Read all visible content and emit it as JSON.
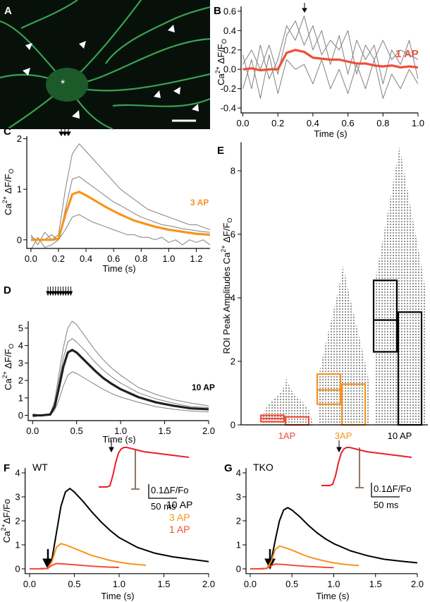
{
  "image_panel": {
    "label": "A",
    "marker": "*"
  },
  "chart_data": [
    {
      "type": "line",
      "panel_label": "B",
      "annotation": "1 AP",
      "annotation_color": "#f04e37",
      "x_label": "Time (s)",
      "y_label_parts": [
        "Ca",
        "2+",
        " ΔF/F",
        "O"
      ],
      "xlim": [
        -0.01,
        1.0
      ],
      "ylim": [
        -0.45,
        0.65
      ],
      "xticks": [
        {
          "value": 0,
          "label": "0.0"
        },
        0.2,
        0.4,
        0.6,
        0.8,
        {
          "value": 1,
          "label": "1.0"
        }
      ],
      "yticks": [
        -0.4,
        -0.2,
        {
          "value": 0,
          "label": "0.0"
        },
        0.2,
        0.4,
        0.6
      ],
      "x": [
        0,
        0.05,
        0.1,
        0.15,
        0.2,
        0.25,
        0.3,
        0.35,
        0.4,
        0.45,
        0.5,
        0.55,
        0.6,
        0.65,
        0.7,
        0.75,
        0.8,
        0.85,
        0.9,
        0.95,
        1.0
      ],
      "series": [
        {
          "color": "#808080",
          "values": [
            0.15,
            -0.2,
            0.25,
            -0.1,
            0.1,
            0.45,
            0.3,
            0.55,
            0.2,
            0.4,
            0.05,
            0.35,
            -0.05,
            0.3,
            0.1,
            0.25,
            -0.15,
            0.2,
            0.05,
            0.3,
            -0.1
          ]
        },
        {
          "color": "#808080",
          "values": [
            -0.2,
            0.1,
            -0.3,
            0.15,
            -0.25,
            0.1,
            0.0,
            0.05,
            -0.15,
            0.1,
            -0.2,
            0.0,
            -0.25,
            0.05,
            -0.2,
            0.1,
            -0.3,
            -0.05,
            -0.2,
            0.0,
            -0.15
          ]
        },
        {
          "color": "#808080",
          "values": [
            0.05,
            0.2,
            0.0,
            0.25,
            -0.05,
            0.35,
            0.5,
            0.25,
            0.45,
            0.15,
            0.3,
            0.2,
            0.4,
            -0.05,
            0.25,
            0.1,
            0.3,
            0.1,
            0.2,
            0.15,
            0.1
          ]
        },
        {
          "color": "#f04e37",
          "values": [
            0,
            0.01,
            -0.01,
            0,
            0,
            0.17,
            0.2,
            0.18,
            0.12,
            0.11,
            0.1,
            0.1,
            0.08,
            0.06,
            0.06,
            0.04,
            0.03,
            0.04,
            0.02,
            0.03,
            0.02
          ]
        }
      ]
    },
    {
      "type": "line",
      "panel_label": "C",
      "annotation": "3 AP",
      "annotation_color": "#f7941d",
      "x_label": "Time (s)",
      "y_label_parts": [
        "Ca",
        "2+",
        " ΔF/F",
        "O"
      ],
      "xlim": [
        -0.03,
        1.3
      ],
      "ylim": [
        -0.17,
        2.05
      ],
      "xticks": [
        {
          "value": 0,
          "label": "0.0"
        },
        0.2,
        0.4,
        0.6,
        0.8,
        {
          "value": 1,
          "label": "1.0"
        },
        1.2
      ],
      "yticks": [
        0,
        1,
        2
      ],
      "x": [
        0,
        0.05,
        0.1,
        0.15,
        0.2,
        0.25,
        0.3,
        0.35,
        0.4,
        0.45,
        0.5,
        0.55,
        0.6,
        0.65,
        0.7,
        0.75,
        0.8,
        0.85,
        0.9,
        0.95,
        1.0,
        1.05,
        1.1,
        1.15,
        1.2,
        1.25,
        1.3
      ],
      "series": [
        {
          "color": "#808080",
          "values": [
            0.1,
            -0.1,
            0.15,
            0,
            0.1,
            1.0,
            1.7,
            1.9,
            1.75,
            1.6,
            1.45,
            1.3,
            1.15,
            1.0,
            0.9,
            0.8,
            0.7,
            0.6,
            0.55,
            0.5,
            0.45,
            0.4,
            0.35,
            0.3,
            0.3,
            0.25,
            0.2
          ]
        },
        {
          "color": "#808080",
          "values": [
            -0.2,
            0.05,
            -0.15,
            -0.1,
            0,
            0.2,
            0.45,
            0.5,
            0.42,
            0.35,
            0.3,
            0.25,
            0.2,
            0.15,
            0.1,
            0.1,
            0.05,
            0.05,
            0,
            0.05,
            -0.05,
            0,
            -0.1,
            0,
            -0.05,
            0,
            -0.1
          ]
        },
        {
          "color": "#808080",
          "values": [
            0.05,
            0,
            0,
            0.1,
            0,
            0.6,
            1.2,
            1.25,
            1.15,
            1.05,
            0.95,
            0.85,
            0.75,
            0.68,
            0.6,
            0.52,
            0.45,
            0.4,
            0.35,
            0.3,
            0.28,
            0.25,
            0.22,
            0.2,
            0.18,
            0.16,
            0.15
          ]
        },
        {
          "color": "#f7941d",
          "values": [
            0,
            0,
            0,
            0,
            0.02,
            0.5,
            0.9,
            0.95,
            0.88,
            0.8,
            0.72,
            0.64,
            0.57,
            0.5,
            0.44,
            0.38,
            0.34,
            0.3,
            0.26,
            0.23,
            0.2,
            0.18,
            0.16,
            0.14,
            0.12,
            0.11,
            0.1
          ]
        }
      ]
    },
    {
      "type": "line",
      "panel_label": "D",
      "annotation": "10 AP",
      "annotation_color": "#000000",
      "x_label": "Time (s)",
      "y_label_parts": [
        "Ca",
        "2+",
        " ΔF/F",
        "O"
      ],
      "xlim": [
        -0.05,
        2.0
      ],
      "ylim": [
        -0.3,
        5.4
      ],
      "xticks": [
        {
          "value": 0,
          "label": "0.0"
        },
        0.5,
        {
          "value": 1,
          "label": "1.0"
        },
        1.5,
        {
          "value": 2,
          "label": "2.0"
        }
      ],
      "yticks": [
        0,
        1,
        2,
        3,
        4,
        5
      ],
      "x": [
        0,
        0.1,
        0.2,
        0.25,
        0.3,
        0.35,
        0.4,
        0.45,
        0.5,
        0.6,
        0.7,
        0.8,
        0.9,
        1.0,
        1.2,
        1.4,
        1.6,
        1.8,
        2.0
      ],
      "series": [
        {
          "color": "#808080",
          "values": [
            0.1,
            0,
            0.1,
            0.8,
            2.4,
            3.9,
            5.0,
            5.4,
            5.2,
            4.5,
            3.8,
            3.2,
            2.7,
            2.3,
            1.6,
            1.2,
            0.9,
            0.7,
            0.55
          ]
        },
        {
          "color": "#808080",
          "values": [
            -0.1,
            0,
            0,
            0.3,
            0.9,
            1.7,
            2.3,
            2.5,
            2.4,
            2.1,
            1.8,
            1.5,
            1.25,
            1.05,
            0.75,
            0.5,
            0.35,
            0.25,
            0.2
          ]
        },
        {
          "color": "#808080",
          "values": [
            0,
            0.05,
            0.05,
            0.6,
            2.0,
            3.3,
            4.2,
            4.4,
            4.2,
            3.7,
            3.1,
            2.6,
            2.2,
            1.85,
            1.3,
            0.95,
            0.7,
            0.5,
            0.45
          ]
        },
        {
          "color": "#231f20",
          "values": [
            0,
            0,
            0.05,
            0.5,
            1.6,
            2.8,
            3.6,
            3.75,
            3.6,
            3.1,
            2.6,
            2.15,
            1.8,
            1.5,
            1.05,
            0.75,
            0.55,
            0.4,
            0.35
          ]
        }
      ]
    },
    {
      "type": "box",
      "panel_label": "E",
      "y_label_parts": [
        "ROI Peak Amplitudes Ca",
        "2+",
        " ΔF/F",
        "O"
      ],
      "ylim": [
        0,
        8.9
      ],
      "yticks": [
        0,
        2,
        4,
        6,
        8
      ],
      "categories": [
        "1AP",
        "3AP",
        "10 AP"
      ],
      "colors": [
        "#f04e37",
        "#f7941d",
        "#000000"
      ],
      "min": [
        0,
        0,
        0
      ],
      "max": [
        1.55,
        5.05,
        8.8
      ],
      "q1": [
        0.1,
        0.65,
        2.3
      ],
      "median": [
        0.2,
        1.1,
        3.3
      ],
      "q3": [
        0.3,
        1.6,
        4.55
      ],
      "bar_values": [
        0.25,
        1.28,
        3.55
      ]
    },
    {
      "type": "line",
      "panel_label": "F",
      "annotation": "WT",
      "annotation_color": "#000000",
      "x_label": "Time (s)",
      "y_label_parts": [
        "Ca",
        "2+",
        "ΔF/Fo"
      ],
      "xlim": [
        -0.05,
        2.0
      ],
      "ylim": [
        -0.2,
        4.2
      ],
      "xticks": [
        {
          "value": 0,
          "label": "0.0"
        },
        0.5,
        {
          "value": 1,
          "label": "1.0"
        },
        1.5,
        {
          "value": 2,
          "label": "2.0"
        }
      ],
      "yticks": [
        0,
        1,
        2,
        3,
        4
      ],
      "series": [
        {
          "name": "10 AP",
          "color": "#000000",
          "x": [
            0,
            0.1,
            0.2,
            0.25,
            0.3,
            0.35,
            0.4,
            0.45,
            0.5,
            0.6,
            0.7,
            0.8,
            0.9,
            1.0,
            1.2,
            1.4,
            1.6,
            1.8,
            2.0
          ],
          "values": [
            0,
            0,
            0.02,
            0.4,
            1.5,
            2.6,
            3.2,
            3.35,
            3.2,
            2.8,
            2.35,
            1.95,
            1.6,
            1.3,
            0.9,
            0.65,
            0.5,
            0.4,
            0.3
          ]
        },
        {
          "name": "3 AP",
          "color": "#f7941d",
          "x": [
            0,
            0.1,
            0.2,
            0.25,
            0.3,
            0.35,
            0.4,
            0.5,
            0.6,
            0.7,
            0.8,
            0.9,
            1.0,
            1.1,
            1.2,
            1.3
          ],
          "values": [
            0,
            0,
            0.02,
            0.3,
            0.9,
            1.05,
            1.0,
            0.85,
            0.7,
            0.55,
            0.45,
            0.35,
            0.28,
            0.22,
            0.18,
            0.15
          ]
        },
        {
          "name": "1 AP",
          "color": "#f04e37",
          "x": [
            0,
            0.1,
            0.2,
            0.25,
            0.3,
            0.4,
            0.5,
            0.6,
            0.7,
            0.8,
            0.9,
            1.0
          ],
          "values": [
            0,
            0,
            0.02,
            0.15,
            0.22,
            0.2,
            0.17,
            0.14,
            0.11,
            0.09,
            0.07,
            0.06
          ]
        }
      ],
      "inset": {
        "scale_y": "0.1ΔF/Fo",
        "scale_x": "50 ms",
        "x": [
          0,
          15,
          20,
          25,
          30,
          35,
          40,
          45,
          50,
          60,
          70,
          80,
          100,
          120,
          140,
          160
        ],
        "values": [
          0,
          0,
          0.01,
          0.08,
          0.17,
          0.24,
          0.27,
          0.28,
          0.28,
          0.27,
          0.26,
          0.25,
          0.24,
          0.23,
          0.22,
          0.21
        ]
      }
    },
    {
      "type": "line",
      "panel_label": "G",
      "annotation": "TKO",
      "annotation_color": "#000000",
      "x_label": "Time (s)",
      "xlim": [
        -0.05,
        2.0
      ],
      "ylim": [
        -0.2,
        4.2
      ],
      "xticks": [
        {
          "value": 0,
          "label": "0.0"
        },
        0.5,
        {
          "value": 1,
          "label": "1.0"
        },
        1.5,
        {
          "value": 2,
          "label": "2.0"
        }
      ],
      "yticks": [
        0,
        1,
        2,
        3,
        4
      ],
      "series": [
        {
          "color": "#000000",
          "x": [
            0,
            0.1,
            0.2,
            0.25,
            0.3,
            0.35,
            0.4,
            0.45,
            0.5,
            0.6,
            0.7,
            0.8,
            0.9,
            1.0,
            1.2,
            1.4,
            1.6,
            1.8,
            2.0
          ],
          "values": [
            0,
            0,
            0.02,
            0.3,
            1.2,
            2.0,
            2.45,
            2.55,
            2.45,
            2.15,
            1.8,
            1.5,
            1.25,
            1.05,
            0.75,
            0.55,
            0.4,
            0.32,
            0.25
          ]
        },
        {
          "color": "#f7941d",
          "x": [
            0,
            0.1,
            0.2,
            0.25,
            0.3,
            0.35,
            0.4,
            0.5,
            0.6,
            0.7,
            0.8,
            0.9,
            1.0,
            1.1,
            1.2,
            1.3
          ],
          "values": [
            0,
            0,
            0.02,
            0.3,
            0.8,
            0.95,
            0.9,
            0.78,
            0.63,
            0.5,
            0.4,
            0.32,
            0.25,
            0.2,
            0.16,
            0.14
          ]
        },
        {
          "color": "#f04e37",
          "x": [
            0,
            0.1,
            0.2,
            0.25,
            0.3,
            0.4,
            0.5,
            0.6,
            0.7,
            0.8,
            0.9,
            1.0
          ],
          "values": [
            0,
            0,
            0.02,
            0.13,
            0.2,
            0.18,
            0.15,
            0.12,
            0.1,
            0.08,
            0.06,
            0.05
          ]
        }
      ],
      "inset": {
        "scale_y": "0.1ΔF/Fo",
        "scale_x": "50 ms",
        "x": [
          0,
          15,
          20,
          25,
          30,
          35,
          40,
          45,
          50,
          60,
          70,
          80,
          100,
          120,
          140,
          160
        ],
        "values": [
          0,
          0,
          0.01,
          0.07,
          0.16,
          0.23,
          0.26,
          0.27,
          0.27,
          0.26,
          0.25,
          0.24,
          0.23,
          0.22,
          0.21,
          0.2
        ]
      }
    }
  ]
}
